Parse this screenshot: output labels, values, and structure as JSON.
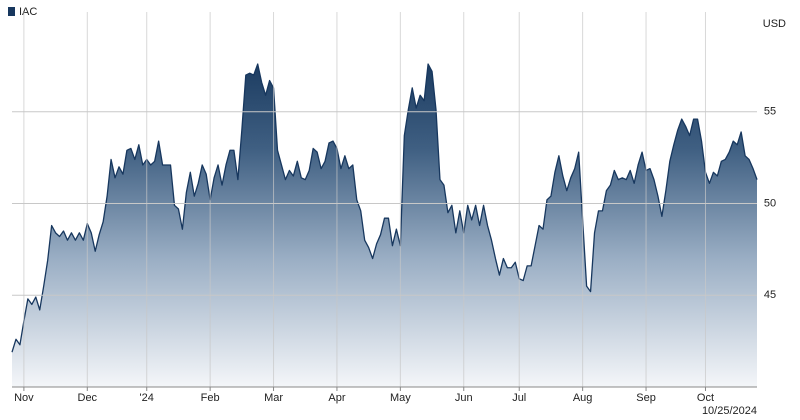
{
  "chart_data": {
    "type": "area",
    "legend_position": "top-left",
    "y_unit": "USD",
    "date_label": "10/25/2024",
    "categories": [
      null,
      null,
      null,
      "Nov",
      null,
      null,
      null,
      null,
      null,
      null,
      null,
      null,
      null,
      null,
      null,
      null,
      null,
      null,
      null,
      "Dec",
      null,
      null,
      null,
      null,
      null,
      null,
      null,
      null,
      null,
      null,
      null,
      null,
      null,
      null,
      "'24",
      null,
      null,
      null,
      null,
      null,
      null,
      null,
      null,
      null,
      null,
      null,
      null,
      null,
      null,
      null,
      "Feb",
      null,
      null,
      null,
      null,
      null,
      null,
      null,
      null,
      null,
      null,
      null,
      null,
      null,
      null,
      null,
      "Mar",
      null,
      null,
      null,
      null,
      null,
      null,
      null,
      null,
      null,
      null,
      null,
      null,
      null,
      null,
      null,
      "Apr",
      null,
      null,
      null,
      null,
      null,
      null,
      null,
      null,
      null,
      null,
      null,
      null,
      null,
      null,
      null,
      "May",
      null,
      null,
      null,
      null,
      null,
      null,
      null,
      null,
      null,
      null,
      null,
      null,
      null,
      null,
      null,
      "Jun",
      null,
      null,
      null,
      null,
      null,
      null,
      null,
      null,
      null,
      null,
      null,
      null,
      null,
      "Jul",
      null,
      null,
      null,
      null,
      null,
      null,
      null,
      null,
      null,
      null,
      null,
      null,
      null,
      null,
      null,
      "Aug",
      null,
      null,
      null,
      null,
      null,
      null,
      null,
      null,
      null,
      null,
      null,
      null,
      null,
      null,
      null,
      "Sep",
      null,
      null,
      null,
      null,
      null,
      null,
      null,
      null,
      null,
      null,
      null,
      null,
      null,
      null,
      "Oct",
      null,
      null,
      null,
      null,
      null,
      null,
      null,
      null,
      null,
      null,
      null,
      null,
      null
    ],
    "series": [
      {
        "name": "IAC",
        "color": "#17375e",
        "values": [
          41.9,
          42.6,
          42.3,
          43.6,
          44.8,
          44.5,
          44.9,
          44.2,
          45.5,
          46.9,
          48.8,
          48.4,
          48.2,
          48.5,
          48.0,
          48.4,
          48.0,
          48.4,
          48.0,
          48.9,
          48.4,
          47.4,
          48.3,
          49.0,
          50.4,
          52.4,
          51.4,
          52.0,
          51.6,
          52.9,
          53.0,
          52.4,
          53.2,
          52.1,
          52.4,
          52.1,
          52.3,
          53.4,
          52.1,
          52.1,
          52.1,
          49.9,
          49.7,
          48.6,
          50.6,
          51.7,
          50.4,
          51.1,
          52.1,
          51.6,
          50.2,
          51.4,
          52.1,
          51.0,
          52.1,
          52.9,
          52.9,
          51.3,
          54.0,
          57.0,
          57.1,
          57.0,
          57.6,
          56.6,
          55.9,
          56.7,
          56.3,
          52.9,
          52.1,
          51.3,
          51.8,
          51.5,
          52.3,
          51.4,
          51.3,
          51.8,
          53.0,
          52.8,
          51.9,
          52.3,
          53.3,
          53.4,
          53.0,
          51.9,
          52.6,
          51.9,
          52.1,
          50.2,
          49.6,
          48.0,
          47.6,
          47.0,
          47.8,
          48.3,
          49.2,
          49.2,
          47.7,
          48.6,
          47.7,
          53.7,
          55.1,
          56.3,
          55.2,
          55.9,
          55.6,
          57.6,
          57.2,
          55.1,
          51.3,
          51.0,
          49.5,
          49.9,
          48.4,
          49.6,
          48.4,
          49.9,
          49.1,
          49.9,
          48.8,
          49.9,
          48.8,
          48.0,
          47.0,
          46.1,
          47.0,
          46.5,
          46.5,
          46.8,
          45.9,
          45.8,
          46.6,
          46.6,
          47.7,
          48.8,
          48.6,
          50.2,
          50.4,
          51.7,
          52.6,
          51.5,
          50.7,
          51.4,
          51.9,
          52.8,
          49.1,
          45.5,
          45.2,
          48.4,
          49.6,
          49.6,
          50.7,
          51.0,
          51.8,
          51.3,
          51.4,
          51.3,
          51.8,
          51.1,
          52.1,
          52.8,
          51.8,
          51.9,
          51.3,
          50.4,
          49.3,
          50.7,
          52.3,
          53.2,
          54.0,
          54.6,
          54.2,
          53.7,
          54.6,
          54.6,
          53.4,
          51.7,
          51.1,
          51.7,
          51.5,
          52.3,
          52.4,
          52.8,
          53.4,
          53.2,
          53.9,
          52.6,
          52.4,
          51.9,
          51.3
        ]
      }
    ],
    "ylim": [
      40,
      60
    ],
    "yticks": [
      45,
      50,
      55
    ],
    "grid": true
  }
}
